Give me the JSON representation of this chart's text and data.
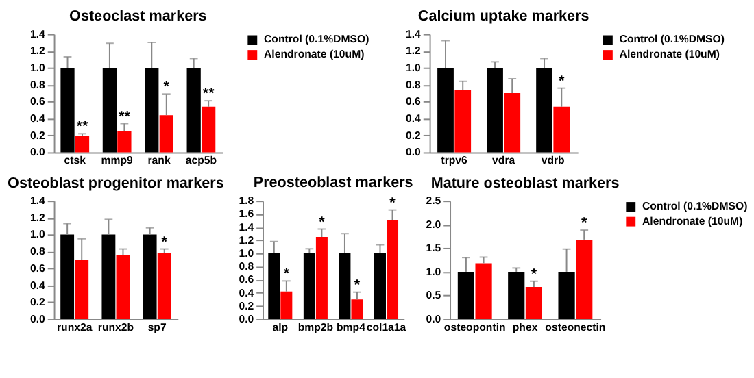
{
  "chart_data": [
    {
      "type": "bar",
      "title": "Osteoclast markers",
      "categories": [
        "ctsk",
        "mmp9",
        "rank",
        "acp5b"
      ],
      "series": [
        {
          "name": "Control (0.1%DMSO)",
          "color": "#000000",
          "values": [
            1.0,
            1.0,
            1.0,
            1.0
          ],
          "errors": [
            [
              1.0,
              1.13
            ],
            [
              1.0,
              1.29
            ],
            [
              1.0,
              1.3
            ],
            [
              1.0,
              1.11
            ]
          ]
        },
        {
          "name": "Alendronate (10uM)",
          "color": "#ff0000",
          "values": [
            0.19,
            0.25,
            0.44,
            0.54
          ],
          "errors": [
            [
              0.19,
              0.22
            ],
            [
              0.25,
              0.34
            ],
            [
              0.44,
              0.69
            ],
            [
              0.54,
              0.61
            ]
          ]
        }
      ],
      "ylim": [
        0,
        1.4
      ],
      "yticks": [
        {
          "value": 0,
          "label": "0.0"
        },
        {
          "value": 0.2,
          "label": "0.2"
        },
        {
          "value": 0.4,
          "label": "0.4"
        },
        {
          "value": 0.6,
          "label": "0.6"
        },
        {
          "value": 0.8,
          "label": "0.8"
        },
        {
          "value": 1.0,
          "label": "1.0"
        },
        {
          "value": 1.2,
          "label": "1.2"
        },
        {
          "value": 1.4,
          "label": "1.4"
        }
      ],
      "grid": false,
      "legend": "right",
      "annotations": [
        {
          "text": "**",
          "x": "ctsk",
          "y": 0.19
        },
        {
          "text": "**",
          "x": "mmp9",
          "y": 0.25
        },
        {
          "text": "*",
          "x": "rank",
          "y": 0.44
        },
        {
          "text": "**",
          "x": "acp5b",
          "y": 0.54
        }
      ]
    },
    {
      "type": "bar",
      "title": "Calcium uptake markers",
      "categories": [
        "trpv6",
        "vdra",
        "vdrb"
      ],
      "series": [
        {
          "name": "Control (0.1%DMSO)",
          "color": "#000000",
          "values": [
            1.0,
            1.0,
            1.0
          ],
          "errors": [
            [
              1.0,
              1.32
            ],
            [
              1.0,
              1.07
            ],
            [
              1.0,
              1.11
            ]
          ]
        },
        {
          "name": "Alendronate (10uM)",
          "color": "#ff0000",
          "values": [
            0.74,
            0.7,
            0.54
          ],
          "errors": [
            [
              0.74,
              0.84
            ],
            [
              0.7,
              0.87
            ],
            [
              0.54,
              0.76
            ]
          ]
        }
      ],
      "ylim": [
        0,
        1.4
      ],
      "yticks": [
        {
          "value": 0,
          "label": "0.0"
        },
        {
          "value": 0.2,
          "label": "0.2"
        },
        {
          "value": 0.4,
          "label": "0.4"
        },
        {
          "value": 0.6,
          "label": "0.6"
        },
        {
          "value": 0.8,
          "label": "0.8"
        },
        {
          "value": 1.0,
          "label": "1.0"
        },
        {
          "value": 1.2,
          "label": "1.2"
        },
        {
          "value": 1.4,
          "label": "1.4"
        }
      ],
      "grid": false,
      "legend": "right",
      "annotations": [
        {
          "text": "*",
          "x": "vdrb",
          "y": 0.54
        }
      ]
    },
    {
      "type": "bar",
      "title": "Osteoblast  progenitor markers",
      "categories": [
        "runx2a",
        "runx2b",
        "sp7"
      ],
      "series": [
        {
          "color": "#000000",
          "values": [
            1.0,
            1.0,
            1.0
          ],
          "errors": [
            [
              1.0,
              1.13
            ],
            [
              1.0,
              1.18
            ],
            [
              1.0,
              1.08
            ]
          ]
        },
        {
          "color": "#ff0000",
          "values": [
            0.7,
            0.76,
            0.78
          ],
          "errors": [
            [
              0.7,
              0.95
            ],
            [
              0.76,
              0.83
            ],
            [
              0.78,
              0.83
            ]
          ]
        }
      ],
      "ylim": [
        0,
        1.4
      ],
      "yticks": [
        {
          "value": 0,
          "label": "0.0"
        },
        {
          "value": 0.2,
          "label": "0.2"
        },
        {
          "value": 0.4,
          "label": "0.4"
        },
        {
          "value": 0.6,
          "label": "0.6"
        },
        {
          "value": 0.8,
          "label": "0.8"
        },
        {
          "value": 1.0,
          "label": "1.0"
        },
        {
          "value": 1.2,
          "label": "1.2"
        },
        {
          "value": 1.4,
          "label": "1.4"
        }
      ],
      "grid": false,
      "annotations": [
        {
          "text": "*",
          "x": "sp7",
          "y": 0.78
        }
      ]
    },
    {
      "type": "bar",
      "title": "Preosteoblast markers",
      "categories": [
        "alp",
        "bmp2b",
        "bmp4",
        "col1a1a"
      ],
      "series": [
        {
          "color": "#000000",
          "values": [
            1.0,
            1.0,
            1.0,
            1.0
          ],
          "errors": [
            [
              1.0,
              1.18
            ],
            [
              1.0,
              1.07
            ],
            [
              1.0,
              1.3
            ],
            [
              1.0,
              1.13
            ]
          ]
        },
        {
          "color": "#ff0000",
          "values": [
            0.42,
            1.25,
            0.3,
            1.5
          ],
          "errors": [
            [
              0.42,
              0.58
            ],
            [
              1.25,
              1.37
            ],
            [
              0.3,
              0.41
            ],
            [
              1.5,
              1.66
            ]
          ]
        }
      ],
      "ylim": [
        0,
        1.8
      ],
      "yticks": [
        {
          "value": 0,
          "label": "0.0"
        },
        {
          "value": 0.2,
          "label": "0.2"
        },
        {
          "value": 0.4,
          "label": "0.4"
        },
        {
          "value": 0.6,
          "label": "0.6"
        },
        {
          "value": 0.8,
          "label": "0.8"
        },
        {
          "value": 1.0,
          "label": "1.0"
        },
        {
          "value": 1.2,
          "label": "1.2"
        },
        {
          "value": 1.4,
          "label": "1.4"
        },
        {
          "value": 1.6,
          "label": "1.6"
        },
        {
          "value": 1.8,
          "label": "1.8"
        }
      ],
      "grid": false,
      "annotations": [
        {
          "text": "*",
          "x": "alp",
          "y": 0.42
        },
        {
          "text": "*",
          "x": "bmp2b",
          "y": 1.25
        },
        {
          "text": "*",
          "x": "bmp4",
          "y": 0.3
        },
        {
          "text": "*",
          "x": "col1a1a",
          "y": 1.5
        }
      ]
    },
    {
      "type": "bar",
      "title": "Mature osteoblast markers",
      "categories": [
        "osteopontin",
        "phex",
        "osteonectin"
      ],
      "series": [
        {
          "name": "Control (0.1%DMSO)",
          "color": "#000000",
          "values": [
            1.0,
            1.0,
            1.0
          ],
          "errors": [
            [
              1.0,
              1.3
            ],
            [
              1.0,
              1.08
            ],
            [
              1.0,
              1.48
            ]
          ]
        },
        {
          "name": "Alendronate (10uM)",
          "color": "#ff0000",
          "values": [
            1.18,
            0.68,
            1.68
          ],
          "errors": [
            [
              1.18,
              1.31
            ],
            [
              0.68,
              0.8
            ],
            [
              1.68,
              1.88
            ]
          ]
        }
      ],
      "ylim": [
        0,
        2.5
      ],
      "yticks": [
        {
          "value": 0,
          "label": "0.0"
        },
        {
          "value": 0.5,
          "label": "0.5"
        },
        {
          "value": 1.0,
          "label": "1.0"
        },
        {
          "value": 1.5,
          "label": "1.5"
        },
        {
          "value": 2.0,
          "label": "2.0"
        },
        {
          "value": 2.5,
          "label": "2.5"
        }
      ],
      "grid": false,
      "legend": "right",
      "annotations": [
        {
          "text": "*",
          "x": "phex",
          "y": 0.68
        },
        {
          "text": "*",
          "x": "osteonectin",
          "y": 1.68
        }
      ]
    }
  ]
}
